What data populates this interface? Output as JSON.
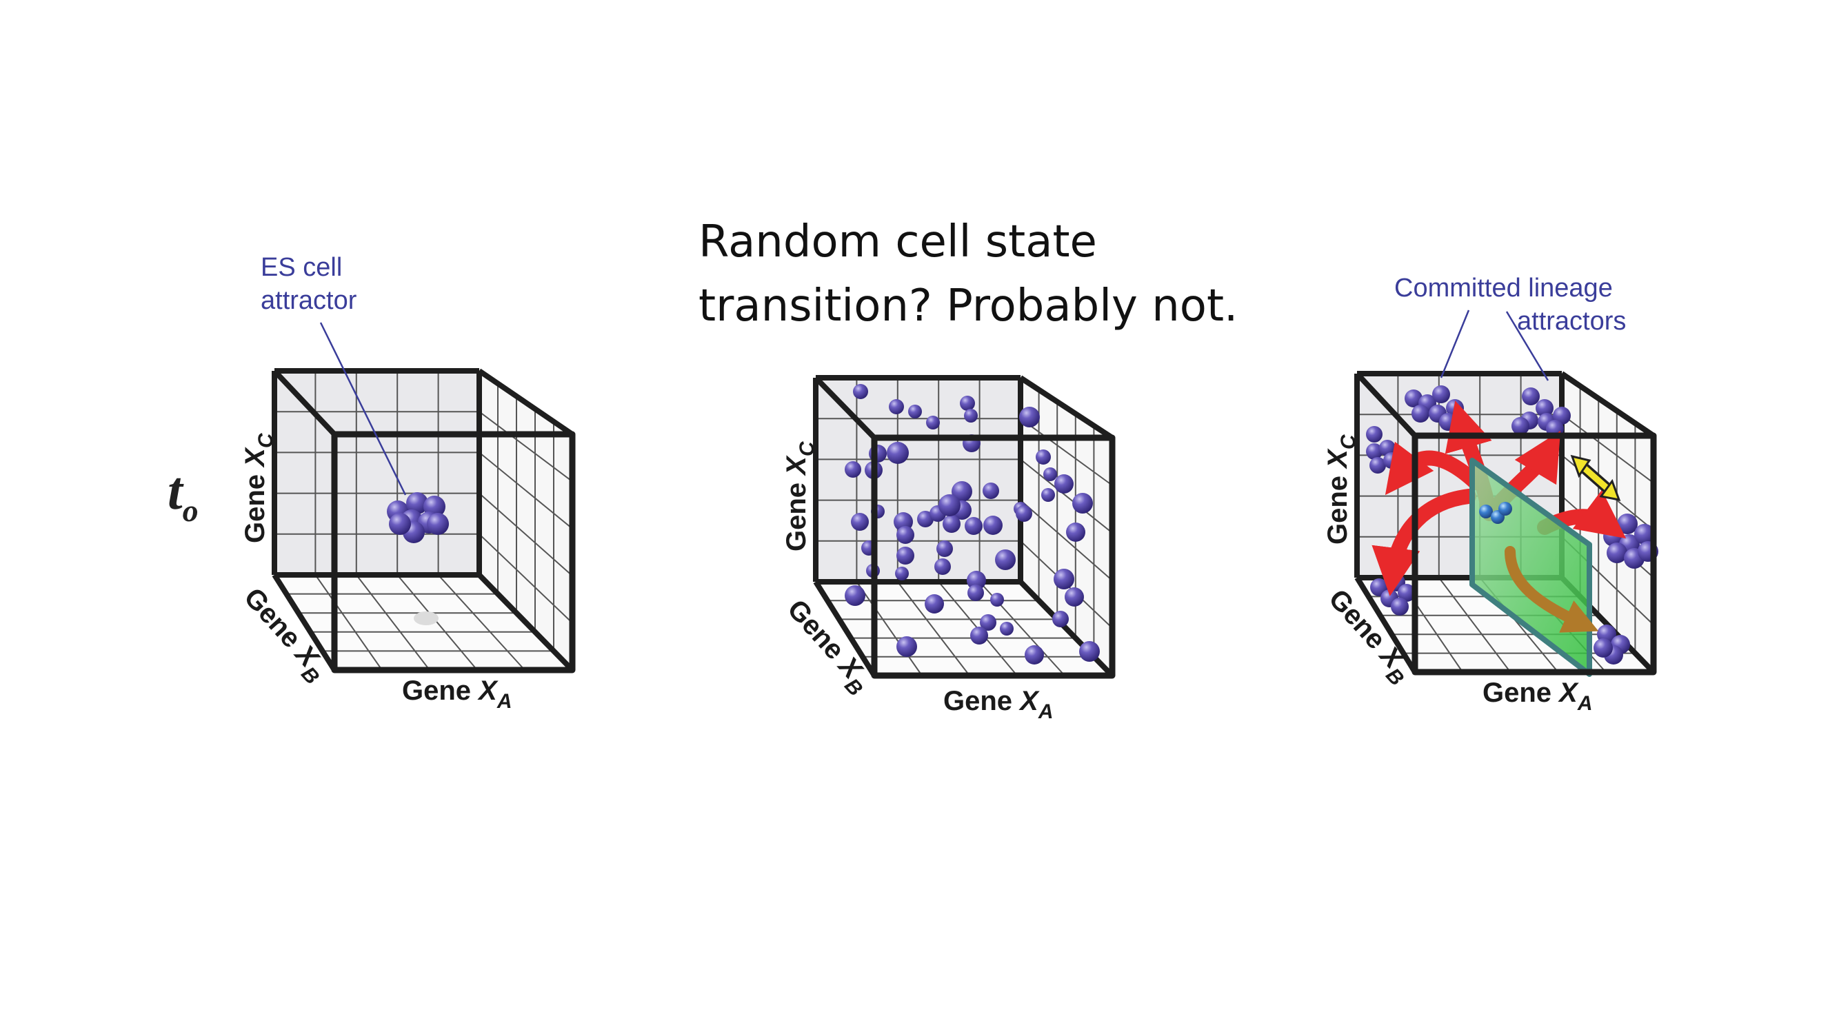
{
  "title": {
    "line1": "Random cell state",
    "line2": "transition? Probably not."
  },
  "time_label": {
    "main": "t",
    "sub": "o"
  },
  "panels": [
    {
      "axes": {
        "x": {
          "text": "Gene ",
          "var": "X",
          "sub": "A"
        },
        "y": {
          "text": "Gene ",
          "var": "X",
          "sub": "C"
        },
        "z": {
          "text": "Gene ",
          "var": "X",
          "sub": "B"
        }
      },
      "annotation": {
        "line1": "ES cell",
        "line2": "attractor"
      }
    },
    {
      "axes": {
        "x": {
          "text": "Gene ",
          "var": "X",
          "sub": "A"
        },
        "y": {
          "text": "Gene ",
          "var": "X",
          "sub": "C"
        },
        "z": {
          "text": "Gene ",
          "var": "X",
          "sub": "B"
        }
      }
    },
    {
      "axes": {
        "x": {
          "text": "Gene ",
          "var": "X",
          "sub": "A"
        },
        "y": {
          "text": "Gene ",
          "var": "X",
          "sub": "C"
        },
        "z": {
          "text": "Gene ",
          "var": "X",
          "sub": "B"
        }
      },
      "annotation": {
        "line1": "Committed lineage",
        "line2": "attractors"
      }
    }
  ],
  "colors": {
    "cell": "#4a3d9e",
    "cell_highlight": "#b9b4ea",
    "progenitor": "#3b7fd0",
    "arrow": "#e8292b",
    "double_arrow": "#f2e42a",
    "plane": "#3fbf5a",
    "annotation": "#3a3d9a"
  }
}
